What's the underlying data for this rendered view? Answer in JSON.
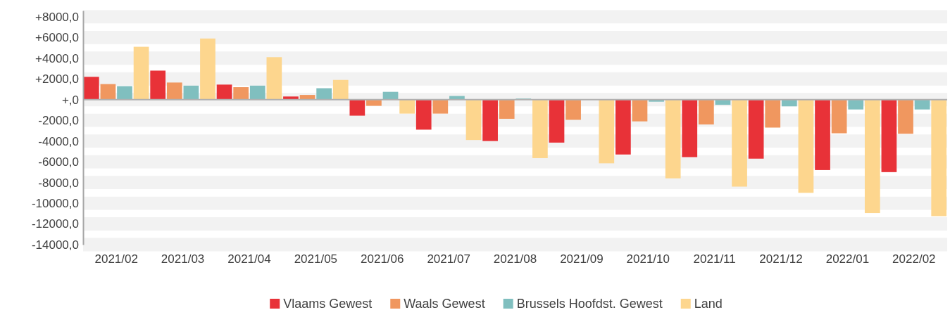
{
  "chart_data": {
    "type": "bar",
    "categories": [
      "2021/02",
      "2021/03",
      "2021/04",
      "2021/05",
      "2021/06",
      "2021/07",
      "2021/08",
      "2021/09",
      "2021/10",
      "2021/11",
      "2021/12",
      "2022/01",
      "2022/02"
    ],
    "series": [
      {
        "name": "Vlaams Gewest",
        "color": "#e83238",
        "values": [
          2200,
          2800,
          1450,
          300,
          -1550,
          -2900,
          -4000,
          -4150,
          -5300,
          -5550,
          -5700,
          -6800,
          -7000
        ]
      },
      {
        "name": "Waals Gewest",
        "color": "#f0975f",
        "values": [
          1500,
          1650,
          1200,
          450,
          -600,
          -1350,
          -1850,
          -1950,
          -2100,
          -2400,
          -2700,
          -3250,
          -3300
        ]
      },
      {
        "name": "Brussels Hoofdst. Gewest",
        "color": "#80bfbf",
        "values": [
          1300,
          1350,
          1350,
          1100,
          750,
          350,
          100,
          0,
          -200,
          -500,
          -650,
          -950,
          -950
        ]
      },
      {
        "name": "Land",
        "color": "#fdd68e",
        "values": [
          5100,
          5900,
          4100,
          1900,
          -1350,
          -3900,
          -5650,
          -6150,
          -7600,
          -8400,
          -9000,
          -10950,
          -11250
        ]
      }
    ],
    "ylim": [
      -14000,
      8600
    ],
    "yticks": [
      {
        "value": -14000,
        "label": "-14000,0"
      },
      {
        "value": -12000,
        "label": "-12000,0"
      },
      {
        "value": -10000,
        "label": "-10000,0"
      },
      {
        "value": -8000,
        "label": "-8000,0"
      },
      {
        "value": -6000,
        "label": "-6000,0"
      },
      {
        "value": -4000,
        "label": "-4000,0"
      },
      {
        "value": -2000,
        "label": "-2000,0"
      },
      {
        "value": 0,
        "label": "+,0"
      },
      {
        "value": 2000,
        "label": "+2000,0"
      },
      {
        "value": 4000,
        "label": "+4000,0"
      },
      {
        "value": 6000,
        "label": "+6000,0"
      },
      {
        "value": 8000,
        "label": "+8000,0"
      }
    ],
    "grid": true,
    "legend": "bottom"
  }
}
